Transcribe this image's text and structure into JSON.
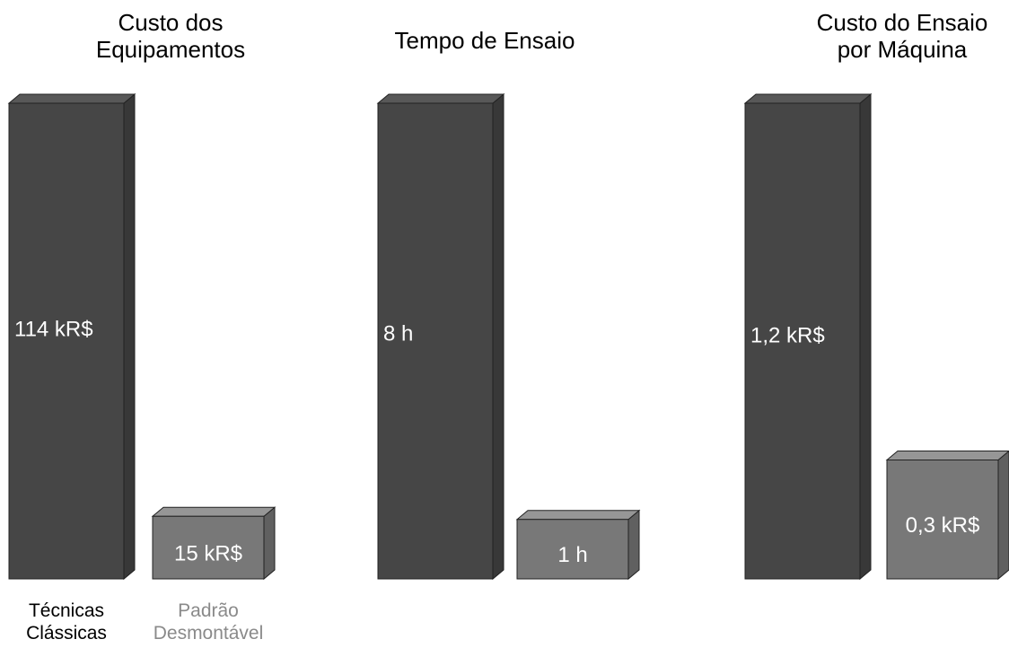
{
  "chart_data": [
    {
      "type": "bar",
      "title": "Custo dos Equipamentos",
      "categories": [
        "Técnicas Clássicas",
        "Padrão Desmontável"
      ],
      "values": [
        114,
        15
      ],
      "value_labels": [
        "114 kR$",
        "15 kR$"
      ],
      "colors": [
        "#464646",
        "#787878"
      ],
      "category_colors": [
        "#000000",
        "#8a8a8a"
      ]
    },
    {
      "type": "bar",
      "title": "Tempo de Ensaio",
      "categories": [
        null,
        null
      ],
      "values": [
        8,
        1
      ],
      "value_labels": [
        "8 h",
        "1 h"
      ],
      "colors": [
        "#464646",
        "#787878"
      ]
    },
    {
      "type": "bar",
      "title": "Custo do Ensaio por Máquina",
      "categories": [
        null,
        null
      ],
      "values": [
        1.2,
        0.3
      ],
      "value_labels": [
        "1,2 kR$",
        "0,3 kR$"
      ],
      "colors": [
        "#464646",
        "#787878"
      ]
    }
  ]
}
